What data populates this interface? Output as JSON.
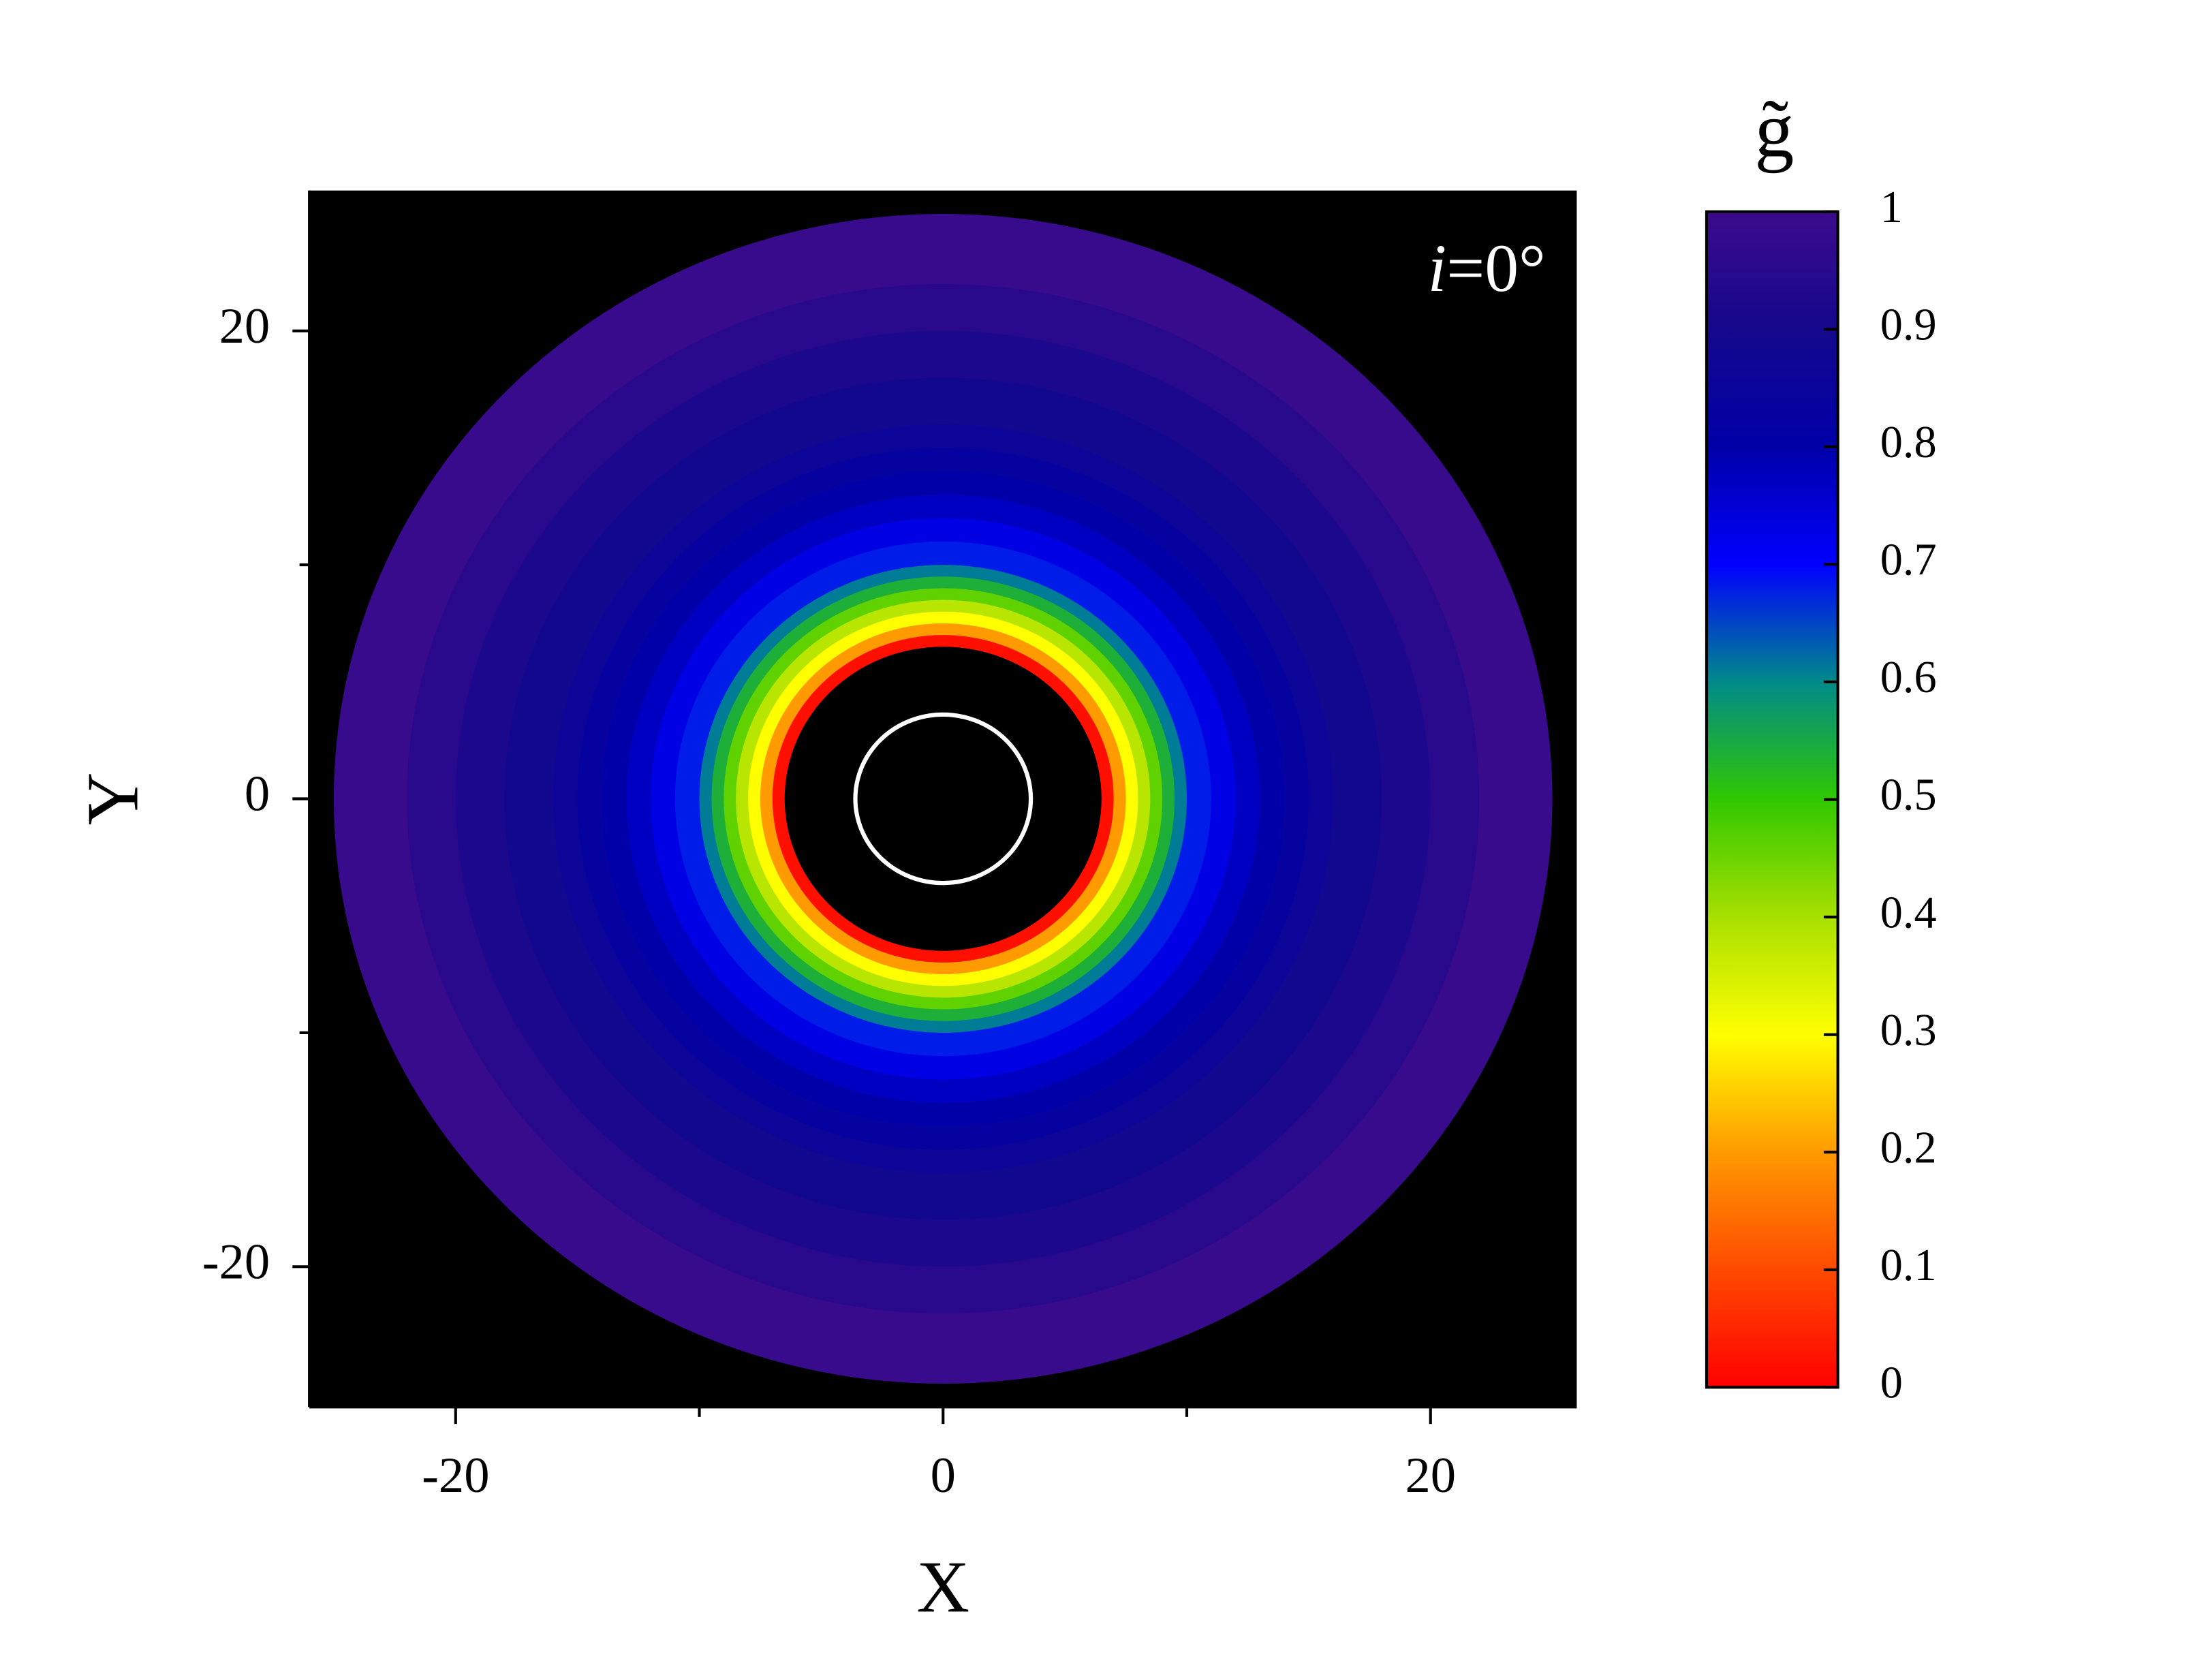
{
  "chart_data": {
    "type": "disk",
    "xlabel": "X",
    "ylabel": "Y",
    "xlim": [
      -26,
      26
    ],
    "ylim": [
      -26,
      26
    ],
    "xticks": [
      -20,
      0,
      20
    ],
    "yticks": [
      -20,
      0,
      20
    ],
    "xminorticks": [
      -10,
      10
    ],
    "yminorticks": [
      -10,
      10
    ],
    "annotation": {
      "symbol": "i",
      "text": "=0°"
    },
    "inner_radius": 6.5,
    "hole_color": "#000000",
    "background": "#000000",
    "ring_color": "#ffffff",
    "ring_radius": 3.6,
    "radius": [
      7,
      7.5,
      8,
      8.5,
      9,
      9.5,
      10,
      11,
      12,
      13,
      14,
      15,
      16,
      18,
      20,
      22,
      25
    ],
    "values": [
      0.02,
      0.2,
      0.3,
      0.38,
      0.46,
      0.54,
      0.61,
      0.68,
      0.73,
      0.77,
      0.8,
      0.83,
      0.86,
      0.89,
      0.92,
      0.95,
      0.99
    ],
    "colorbar": {
      "title": "g̃",
      "clim": [
        0,
        1
      ],
      "ticks": [
        0,
        0.1,
        0.2,
        0.3,
        0.4,
        0.5,
        0.6,
        0.7,
        0.8,
        0.9,
        1
      ],
      "colormap": [
        "#ff0000",
        "#ff4a00",
        "#ff9a00",
        "#ffff00",
        "#a8e000",
        "#30c800",
        "#008a8a",
        "#0000ff",
        "#0000a8",
        "#14088c",
        "#3c0a8c"
      ]
    }
  }
}
